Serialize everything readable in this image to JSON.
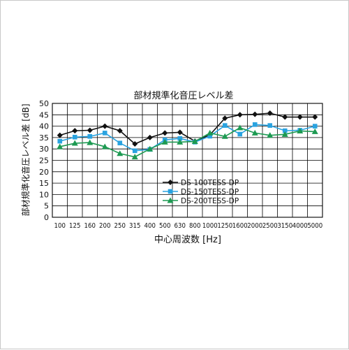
{
  "chart_data": {
    "type": "line",
    "title": "部材規準化音圧レベル差",
    "xlabel": "中心周波数 [Hz]",
    "ylabel": "部材規準化音圧レベル差 [dB]",
    "categories": [
      "100",
      "125",
      "160",
      "200",
      "250",
      "315",
      "400",
      "500",
      "630",
      "800",
      "1000",
      "1250",
      "1600",
      "2000",
      "2500",
      "3150",
      "4000",
      "5000"
    ],
    "ylim": [
      0,
      50
    ],
    "yticks": [
      0,
      5,
      10,
      15,
      20,
      25,
      30,
      35,
      40,
      45,
      50
    ],
    "grid": true,
    "legend_position": "center-right",
    "series": [
      {
        "name": "DS-100TESS-DP",
        "marker": "diamond",
        "color": "#111111",
        "values": [
          36,
          38,
          38.2,
          40,
          38,
          32.2,
          35,
          37,
          37.3,
          33.4,
          36.2,
          43.5,
          45,
          45.2,
          45.7,
          44,
          44,
          44
        ]
      },
      {
        "name": "DS-150TESS-DP",
        "marker": "square",
        "color": "#2aa3e0",
        "values": [
          33.4,
          35.2,
          35.5,
          37,
          32.6,
          29.2,
          29.8,
          34,
          34.6,
          33,
          35.6,
          40.3,
          36.5,
          40.7,
          40.3,
          38,
          38.2,
          40
        ]
      },
      {
        "name": "DS-200TESS-DP",
        "marker": "triangle",
        "color": "#1d9a52",
        "values": [
          31,
          32.5,
          32.8,
          31,
          28,
          26.5,
          30,
          33,
          33,
          33.3,
          37,
          35.5,
          39.3,
          37,
          36,
          36.4,
          37.9,
          37.6
        ]
      }
    ]
  }
}
